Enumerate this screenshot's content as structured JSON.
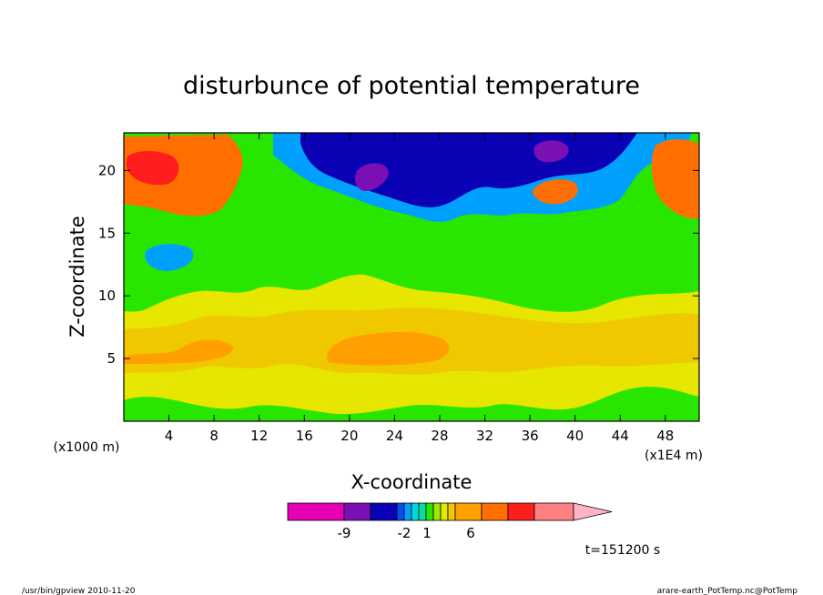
{
  "chart_data": {
    "type": "heatmap",
    "title": "disturbunce of potential temperature",
    "xlabel": "X-coordinate",
    "ylabel": "Z-coordinate",
    "x_unit": "(x1E4 m)",
    "y_unit": "(x1000 m)",
    "xlim": [
      0,
      51
    ],
    "ylim": [
      0,
      23
    ],
    "x_ticks": [
      4,
      8,
      12,
      16,
      20,
      24,
      28,
      32,
      36,
      40,
      44,
      48
    ],
    "y_ticks": [
      5,
      10,
      15,
      20
    ],
    "time_label": "t=151200 s",
    "colorbar": {
      "tick_labels": [
        "-9",
        "-2",
        "1",
        "6"
      ],
      "colors": [
        "#e600b4",
        "#7a10b4",
        "#0a00b4",
        "#0050f0",
        "#00a0ff",
        "#00dcdc",
        "#00e0a0",
        "#28e600",
        "#a0e600",
        "#e6e600",
        "#f0c800",
        "#ffa000",
        "#ff6e00",
        "#ff1e1e",
        "#ff8080",
        "#ffb4c8"
      ]
    }
  },
  "footer": {
    "left": "/usr/bin/gpview  2010-11-20",
    "right": "arare-earth_PotTemp.nc@PotTemp"
  }
}
